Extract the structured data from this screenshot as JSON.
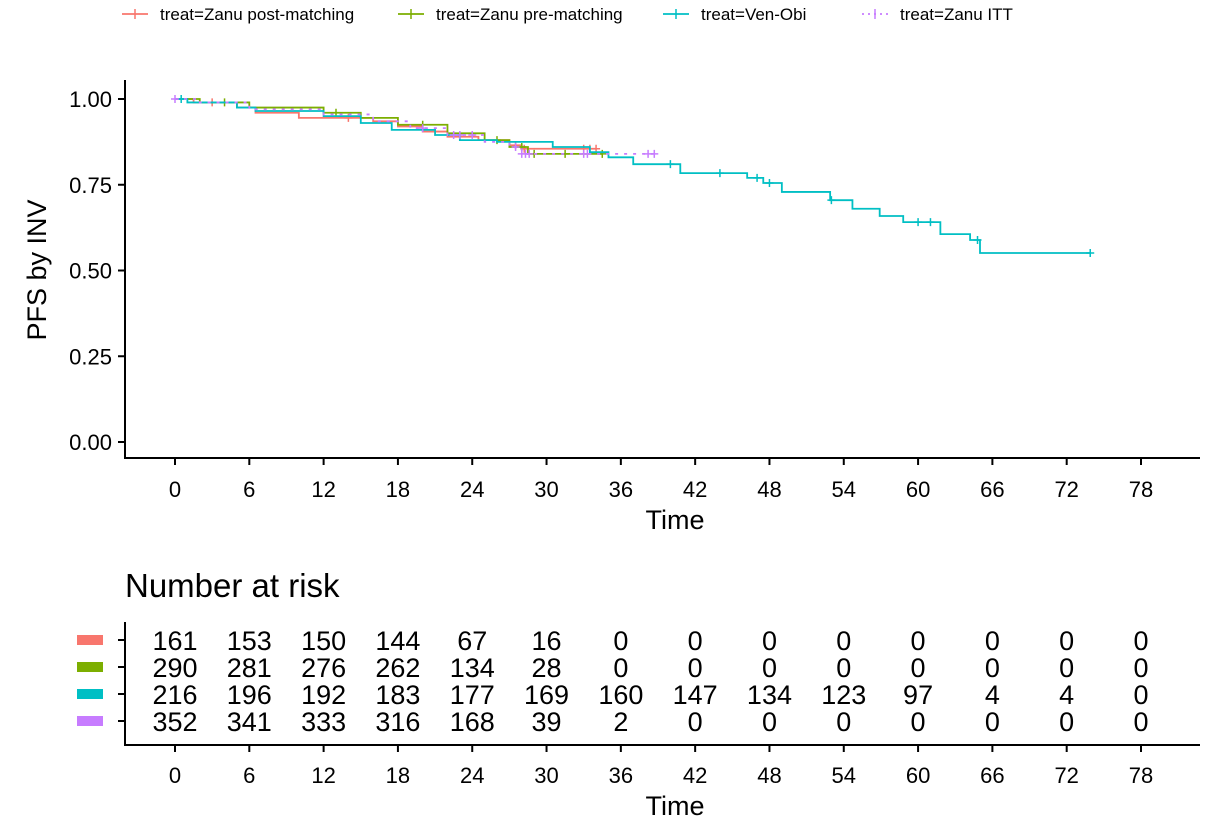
{
  "chart_data": {
    "type": "line",
    "subtype": "kaplan-meier step",
    "xlabel": "Time",
    "ylabel": "PFS by INV",
    "xlim": [
      0,
      78
    ],
    "ylim": [
      0,
      1
    ],
    "x_ticks": [
      0,
      6,
      12,
      18,
      24,
      30,
      36,
      42,
      48,
      54,
      60,
      66,
      72,
      78
    ],
    "y_ticks": [
      "0.00",
      "0.25",
      "0.50",
      "0.75",
      "1.00"
    ],
    "grid": false,
    "legend_position": "top",
    "series": [
      {
        "name": "treat=Zanu post-matching",
        "color": "#F8766D",
        "dash": false,
        "steps": [
          [
            0,
            1
          ],
          [
            1.5,
            0.99
          ],
          [
            5,
            0.975
          ],
          [
            6.5,
            0.96
          ],
          [
            10,
            0.945
          ],
          [
            16,
            0.935
          ],
          [
            18,
            0.92
          ],
          [
            20,
            0.905
          ],
          [
            22,
            0.89
          ],
          [
            24.5,
            0.88
          ],
          [
            27,
            0.865
          ],
          [
            28,
            0.855
          ]
        ],
        "end": 34,
        "censored": [
          3,
          14,
          21,
          27.5,
          28.2,
          33,
          33.5,
          34
        ]
      },
      {
        "name": "treat=Zanu pre-matching",
        "color": "#7CAE00",
        "dash": false,
        "steps": [
          [
            0,
            1
          ],
          [
            2,
            0.99
          ],
          [
            6,
            0.975
          ],
          [
            12,
            0.96
          ],
          [
            15,
            0.945
          ],
          [
            18,
            0.925
          ],
          [
            22,
            0.9
          ],
          [
            25,
            0.88
          ],
          [
            27,
            0.86
          ],
          [
            28.5,
            0.84
          ]
        ],
        "end": 34.5,
        "censored": [
          4,
          13,
          20,
          26,
          28,
          29,
          31.5,
          34.5
        ]
      },
      {
        "name": "treat=Ven-Obi",
        "color": "#00BFC4",
        "dash": false,
        "steps": [
          [
            0,
            1
          ],
          [
            1,
            0.99
          ],
          [
            5,
            0.975
          ],
          [
            6.5,
            0.965
          ],
          [
            12,
            0.95
          ],
          [
            15,
            0.93
          ],
          [
            17.5,
            0.91
          ],
          [
            21,
            0.895
          ],
          [
            23,
            0.88
          ],
          [
            26,
            0.875
          ],
          [
            30.5,
            0.86
          ],
          [
            33.5,
            0.845
          ],
          [
            35,
            0.83
          ],
          [
            37,
            0.81
          ],
          [
            40.8,
            0.784
          ],
          [
            46.2,
            0.77
          ],
          [
            47.5,
            0.755
          ],
          [
            49,
            0.729
          ],
          [
            52.9,
            0.705
          ],
          [
            54.7,
            0.68
          ],
          [
            56.9,
            0.659
          ],
          [
            58.8,
            0.641
          ],
          [
            61.8,
            0.606
          ],
          [
            64.2,
            0.589
          ],
          [
            65,
            0.551
          ]
        ],
        "end": 73.9,
        "censored": [
          0.5,
          40,
          44,
          47,
          48,
          53,
          60,
          61,
          64.8,
          73.9
        ]
      },
      {
        "name": "treat=Zanu ITT",
        "color": "#C77CFF",
        "dash": true,
        "steps": [
          [
            0,
            1
          ],
          [
            2,
            0.99
          ],
          [
            6,
            0.97
          ],
          [
            12,
            0.955
          ],
          [
            16,
            0.935
          ],
          [
            19,
            0.915
          ],
          [
            22,
            0.895
          ],
          [
            25,
            0.875
          ],
          [
            27,
            0.86
          ],
          [
            28,
            0.84
          ]
        ],
        "end": 38.8,
        "censored": [
          0,
          20,
          22.5,
          23,
          24,
          27.5,
          28,
          28.3,
          28.6,
          33,
          33.3,
          38.2,
          38.7
        ]
      }
    ],
    "risk_table": {
      "title": "Number at risk",
      "xlabel": "Time",
      "rows": [
        {
          "color": "#F8766D",
          "values": [
            "161",
            "153",
            "150",
            "144",
            "67",
            "16",
            "0",
            "0",
            "0",
            "0",
            "0",
            "0",
            "0",
            "0"
          ]
        },
        {
          "color": "#7CAE00",
          "values": [
            "290",
            "281",
            "276",
            "262",
            "134",
            "28",
            "0",
            "0",
            "0",
            "0",
            "0",
            "0",
            "0",
            "0"
          ]
        },
        {
          "color": "#00BFC4",
          "values": [
            "216",
            "196",
            "192",
            "183",
            "177",
            "169",
            "160",
            "147",
            "134",
            "123",
            "97",
            "4",
            "4",
            "0"
          ]
        },
        {
          "color": "#C77CFF",
          "values": [
            "352",
            "341",
            "333",
            "316",
            "168",
            "39",
            "2",
            "0",
            "0",
            "0",
            "0",
            "0",
            "0",
            "0"
          ]
        }
      ]
    }
  }
}
